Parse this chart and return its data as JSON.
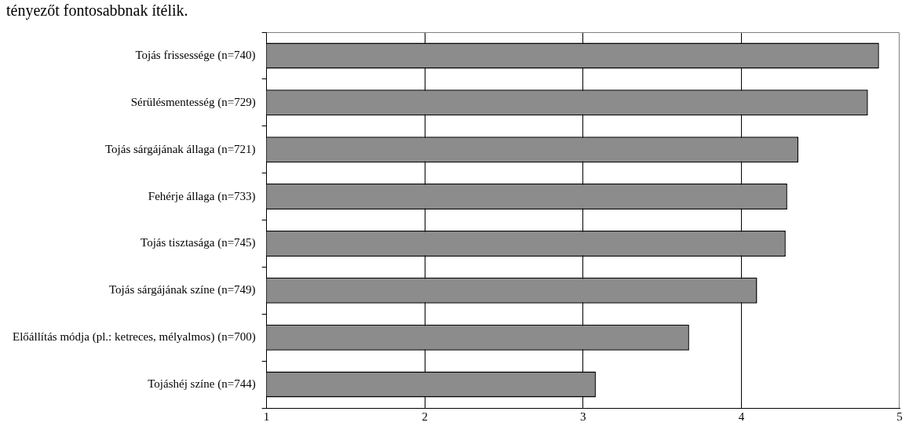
{
  "chart_data": {
    "type": "bar",
    "orientation": "horizontal",
    "categories": [
      "Tojás frissessége (n=740)",
      "Sérülésmentesség (n=729)",
      "Tojás sárgájának állaga (n=721)",
      "Fehérje állaga (n=733)",
      "Tojás tisztasága (n=745)",
      "Tojás sárgájának színe (n=749)",
      "Előállítás módja (pl.: ketreces, mélyalmos) (n=700)",
      "Tojáshéj színe (n=744)"
    ],
    "values": [
      4.87,
      4.8,
      4.36,
      4.29,
      4.28,
      4.1,
      3.67,
      3.08
    ],
    "color": "#8c8c8c",
    "xlim": [
      1,
      5
    ],
    "xticks": [
      1,
      2,
      3,
      4,
      5
    ],
    "grid": "x",
    "legend": false,
    "annotations": [
      "tényezőt fontosabbnak ítélik."
    ]
  }
}
